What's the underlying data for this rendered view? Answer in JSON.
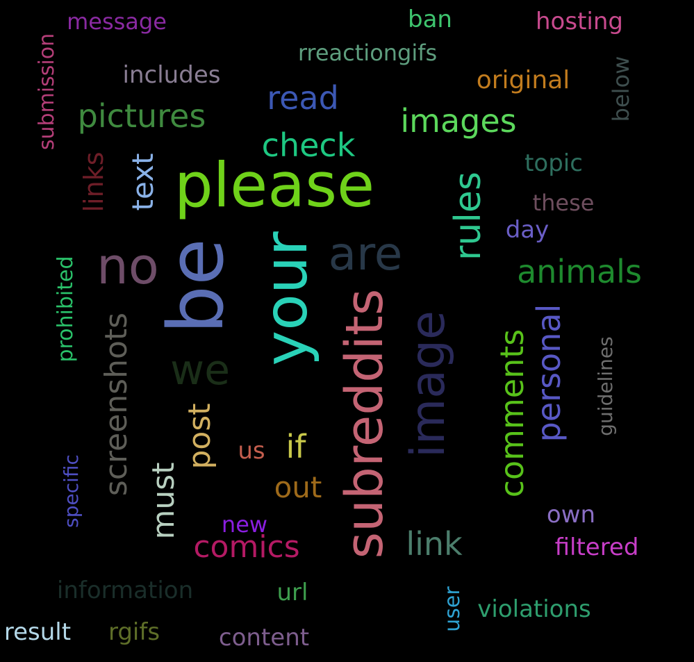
{
  "background": "#000000",
  "words": [
    {
      "text": "please",
      "color": "#6fd21a"
    },
    {
      "text": "be",
      "color": "#5a6eb4"
    },
    {
      "text": "no",
      "color": "#6e4d68"
    },
    {
      "text": "your",
      "color": "#2ad2b8"
    },
    {
      "text": "are",
      "color": "#283848"
    },
    {
      "text": "subreddits",
      "color": "#c46474"
    },
    {
      "text": "image",
      "color": "#2a2a5a"
    },
    {
      "text": "rules",
      "color": "#2fc890"
    },
    {
      "text": "we",
      "color": "#1a2e18"
    },
    {
      "text": "comments",
      "color": "#58c21a"
    },
    {
      "text": "personal",
      "color": "#5858c4"
    },
    {
      "text": "screenshots",
      "color": "#5e5e58"
    },
    {
      "text": "post",
      "color": "#d2b060"
    },
    {
      "text": "pictures",
      "color": "#3f8a3f"
    },
    {
      "text": "images",
      "color": "#5cd85c"
    },
    {
      "text": "check",
      "color": "#1ec882"
    },
    {
      "text": "read",
      "color": "#3c58b4"
    },
    {
      "text": "animals",
      "color": "#1e8a2e"
    },
    {
      "text": "comics",
      "color": "#b41a64"
    },
    {
      "text": "link",
      "color": "#4c7e6c"
    },
    {
      "text": "must",
      "color": "#b8d0c0"
    },
    {
      "text": "text",
      "color": "#8ab2e8"
    },
    {
      "text": "if",
      "color": "#c8c84a"
    },
    {
      "text": "out",
      "color": "#9e6a1a"
    },
    {
      "text": "original",
      "color": "#c27c1e"
    },
    {
      "text": "hosting",
      "color": "#c84a8e"
    },
    {
      "text": "ban",
      "color": "#3ec46e"
    },
    {
      "text": "rreactiongifs",
      "color": "#5e9e7e"
    },
    {
      "text": "message",
      "color": "#8a2aa2"
    },
    {
      "text": "includes",
      "color": "#8a7e94"
    },
    {
      "text": "submission",
      "color": "#b43e78"
    },
    {
      "text": "below",
      "color": "#3e4e4e"
    },
    {
      "text": "topic",
      "color": "#2e6e5e"
    },
    {
      "text": "these",
      "color": "#6e4e5e"
    },
    {
      "text": "day",
      "color": "#6a5ec6"
    },
    {
      "text": "links",
      "color": "#6e1e28"
    },
    {
      "text": "prohibited",
      "color": "#2ac26a"
    },
    {
      "text": "guidelines",
      "color": "#6e6e6e"
    },
    {
      "text": "specific",
      "color": "#4e4ec2"
    },
    {
      "text": "us",
      "color": "#c45e4e"
    },
    {
      "text": "new",
      "color": "#8a1ee0"
    },
    {
      "text": "own",
      "color": "#8a6ec4"
    },
    {
      "text": "filtered",
      "color": "#c83ec8"
    },
    {
      "text": "information",
      "color": "#1a2e2a"
    },
    {
      "text": "url",
      "color": "#3e9e4e"
    },
    {
      "text": "user",
      "color": "#2ea2d2"
    },
    {
      "text": "violations",
      "color": "#2e9e6e"
    },
    {
      "text": "result",
      "color": "#b4d8e8"
    },
    {
      "text": "rgifs",
      "color": "#5e6e28"
    },
    {
      "text": "content",
      "color": "#7e5e8e"
    }
  ]
}
